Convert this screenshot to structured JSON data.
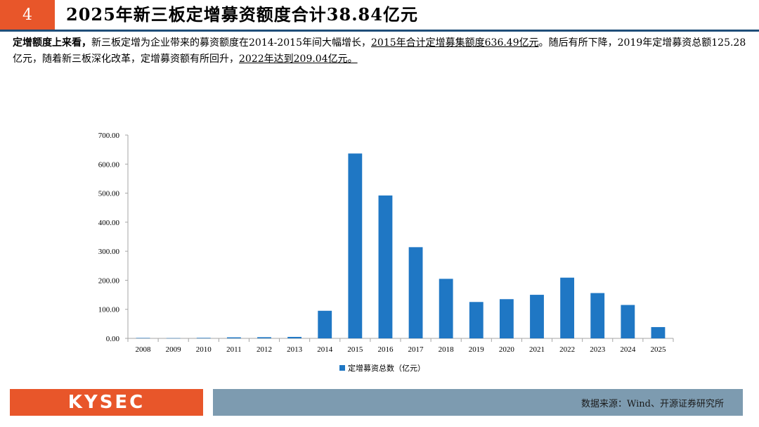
{
  "header": {
    "slide_number": "4",
    "title": "2025年新三板定增募资额度合计38.84亿元"
  },
  "description": {
    "lead": "定增额度上来看，",
    "part1": "新三板定增为企业带来的募资额度在2014-2015年间大幅增长，",
    "part2": "2015年合计定增募集额度636.49亿元",
    "part3": "。随后有所下降，2019年定增募资总额125.28亿元，随着新三板深化改革，定增募资额有所回升，",
    "part4": "2022年达到209.04亿元。"
  },
  "chart_data": {
    "type": "bar",
    "categories": [
      "2008",
      "2009",
      "2010",
      "2011",
      "2012",
      "2013",
      "2014",
      "2015",
      "2016",
      "2017",
      "2018",
      "2019",
      "2020",
      "2021",
      "2022",
      "2023",
      "2024",
      "2025"
    ],
    "series": [
      {
        "name": "定增募资总数（亿元）",
        "values": [
          1.5,
          0.8,
          1.8,
          3.5,
          4.0,
          5.0,
          95,
          636.49,
          492,
          314,
          205,
          125.28,
          135,
          150,
          209.04,
          156,
          115,
          38.84
        ]
      }
    ],
    "ylim": [
      0,
      700
    ],
    "yticks": [
      "0.00",
      "100.00",
      "200.00",
      "300.00",
      "400.00",
      "500.00",
      "600.00",
      "700.00"
    ],
    "grid": false,
    "legend": "bottom",
    "bar_color": "#1f77c4"
  },
  "footer": {
    "logo_text": "KYSEC",
    "source": "数据来源：Wind、开源证券研究所"
  },
  "colors": {
    "accent": "#e8562a",
    "title_rule": "#1f4e79",
    "footer_bar": "#7d9bb0"
  }
}
